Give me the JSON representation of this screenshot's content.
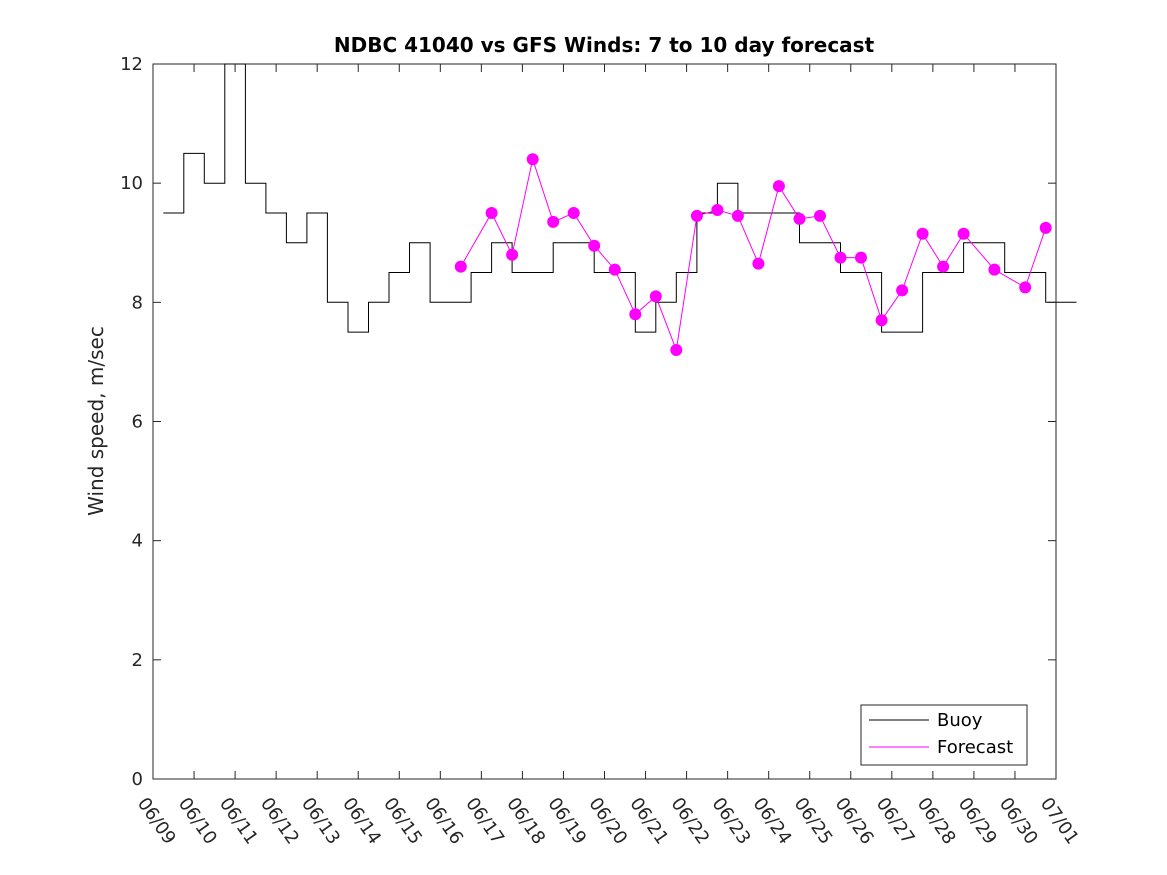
{
  "chart_data": {
    "type": "line",
    "title": "NDBC 41040 vs GFS Winds: 7 to 10 day forecast",
    "xlabel": "",
    "ylabel": "Wind speed, m/sec",
    "xlim": [
      "06/09",
      "07/01"
    ],
    "ylim": [
      0,
      12
    ],
    "yticks": [
      0,
      2,
      4,
      6,
      8,
      10,
      12
    ],
    "xticks": [
      "06/09",
      "06/10",
      "06/11",
      "06/12",
      "06/13",
      "06/14",
      "06/15",
      "06/16",
      "06/17",
      "06/18",
      "06/19",
      "06/20",
      "06/21",
      "06/22",
      "06/23",
      "06/24",
      "06/25",
      "06/26",
      "06/27",
      "06/28",
      "06/29",
      "06/30",
      "07/01"
    ],
    "grid": false,
    "legend": {
      "position": "bottom-right",
      "entries": [
        "Buoy",
        "Forecast"
      ]
    },
    "colors": {
      "buoy": "#000000",
      "forecast": "#ff00ff",
      "axis": "#262626"
    },
    "series": [
      {
        "name": "Buoy",
        "style": "step-line",
        "values": [
          [
            "06/09",
            9.5
          ],
          [
            "06/09",
            10.5
          ],
          [
            "06/10",
            10
          ],
          [
            "06/10",
            12
          ],
          [
            "06/11",
            10
          ],
          [
            "06/11",
            9.5
          ],
          [
            "06/12",
            9
          ],
          [
            "06/12",
            9.5
          ],
          [
            "06/13",
            8
          ],
          [
            "06/13",
            7.5
          ],
          [
            "06/14",
            8
          ],
          [
            "06/14",
            8.5
          ],
          [
            "06/15",
            9
          ],
          [
            "06/15",
            8
          ],
          [
            "06/16",
            8
          ],
          [
            "06/16",
            8.5
          ],
          [
            "06/17",
            9
          ],
          [
            "06/17",
            8.5
          ],
          [
            "06/18",
            8.5
          ],
          [
            "06/18",
            9
          ],
          [
            "06/19",
            9
          ],
          [
            "06/19",
            8.5
          ],
          [
            "06/20",
            8.5
          ],
          [
            "06/20",
            7.5
          ],
          [
            "06/21",
            8
          ],
          [
            "06/21",
            8.5
          ],
          [
            "06/22",
            9.5
          ],
          [
            "06/22",
            10
          ],
          [
            "06/23",
            9.5
          ],
          [
            "06/23",
            9.5
          ],
          [
            "06/24",
            9.5
          ],
          [
            "06/24",
            9
          ],
          [
            "06/25",
            9
          ],
          [
            "06/25",
            8.5
          ],
          [
            "06/26",
            8.5
          ],
          [
            "06/26",
            7.5
          ],
          [
            "06/27",
            7.5
          ],
          [
            "06/27",
            8.5
          ],
          [
            "06/28",
            8.5
          ],
          [
            "06/28",
            9
          ],
          [
            "06/29",
            9
          ],
          [
            "06/29",
            8.5
          ],
          [
            "06/30",
            8.5
          ],
          [
            "06/30",
            8
          ],
          [
            "07/01",
            8
          ]
        ]
      },
      {
        "name": "Forecast",
        "style": "lines-with-markers",
        "values": [
          [
            "06/16",
            8.6
          ],
          [
            "06/17",
            9.5
          ],
          [
            "06/17",
            8.8
          ],
          [
            "06/18",
            10.4
          ],
          [
            "06/18",
            9.35
          ],
          [
            "06/19",
            9.5
          ],
          [
            "06/19",
            8.95
          ],
          [
            "06/20",
            8.55
          ],
          [
            "06/20",
            7.8
          ],
          [
            "06/21",
            8.1
          ],
          [
            "06/21",
            7.2
          ],
          [
            "06/22",
            9.45
          ],
          [
            "06/22",
            9.55
          ],
          [
            "06/23",
            9.45
          ],
          [
            "06/23",
            8.65
          ],
          [
            "06/24",
            9.95
          ],
          [
            "06/24",
            9.4
          ],
          [
            "06/25",
            9.45
          ],
          [
            "06/25",
            8.75
          ],
          [
            "06/26",
            8.75
          ],
          [
            "06/26",
            7.7
          ],
          [
            "06/27",
            8.2
          ],
          [
            "06/27",
            9.15
          ],
          [
            "06/28",
            8.6
          ],
          [
            "06/28",
            9.15
          ],
          [
            "06/29",
            8.55
          ],
          [
            "06/30",
            8.25
          ],
          [
            "06/30",
            9.25
          ]
        ]
      }
    ]
  }
}
